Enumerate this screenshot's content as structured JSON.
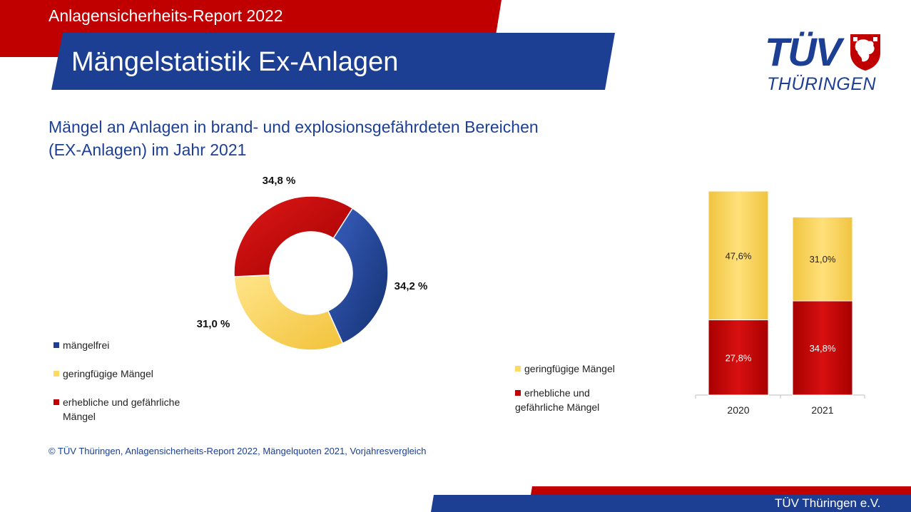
{
  "header": {
    "report_title": "Anlagensicherheits-Report 2022",
    "page_title": "Mängelstatistik Ex-Anlagen"
  },
  "logo": {
    "brand": "TÜV",
    "region": "THÜRINGEN"
  },
  "subtitle": {
    "line1": "Mängel an Anlagen in brand- und explosionsgefährdeten Bereichen",
    "line2": "(EX-Anlagen) im Jahr 2021"
  },
  "colors": {
    "red": "#c00000",
    "blue": "#1c3f94",
    "yellow": "#ffd966",
    "brand_red": "#c00000"
  },
  "chart_data": [
    {
      "type": "pie",
      "variant": "donut",
      "slices": [
        {
          "label": "mängelfrei",
          "value": 34.2,
          "display": "34,2 %",
          "color": "#1c3f94"
        },
        {
          "label": "geringfügige Mängel",
          "value": 31.0,
          "display": "31,0 %",
          "color": "#ffd966"
        },
        {
          "label": "erhebliche und gefährliche Mängel",
          "value": 34.8,
          "display": "34,8 %",
          "color": "#c00000"
        }
      ],
      "legend": [
        {
          "text": "mängelfrei",
          "color": "#1c3f94"
        },
        {
          "text": "geringfügige Mängel",
          "color": "#ffd966"
        },
        {
          "text": "erhebliche und gefährliche",
          "text2": "Mängel",
          "color": "#c00000"
        }
      ],
      "legend_placement": "left"
    },
    {
      "type": "bar",
      "stacked": true,
      "categories": [
        "2020",
        "2021"
      ],
      "series": [
        {
          "name": "erhebliche und gefährliche Mängel",
          "values": [
            27.8,
            34.8
          ],
          "labels": [
            "27,8%",
            "34,8%"
          ],
          "color": "#c00000"
        },
        {
          "name": "geringfügige Mängel",
          "values": [
            47.6,
            31.0
          ],
          "labels": [
            "47,6%",
            "31,0%"
          ],
          "color": "#ffd966"
        }
      ],
      "legend": [
        {
          "text": "geringfügige Mängel",
          "color": "#ffd966"
        },
        {
          "text": "erhebliche und",
          "text2": "gefährliche Mängel",
          "color": "#c00000"
        }
      ],
      "legend_placement": "left",
      "ylim": [
        0,
        75.4
      ],
      "grid": false
    }
  ],
  "footnote": "© TÜV Thüringen, Anlagensicherheits-Report 2022, Mängelquoten 2021, Vorjahresvergleich",
  "footer": {
    "org": "TÜV Thüringen e.V."
  }
}
